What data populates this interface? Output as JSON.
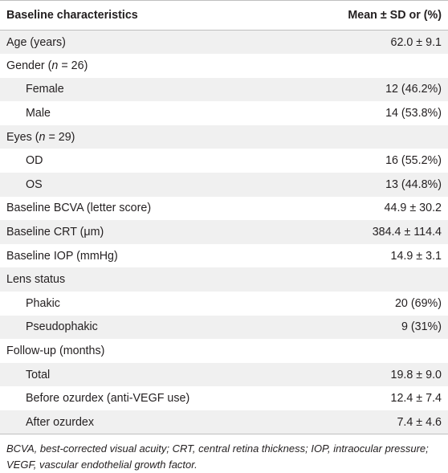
{
  "header": {
    "col1": "Baseline characteristics",
    "col2": "Mean ± SD or (%)"
  },
  "rows": [
    {
      "label": "Age (years)",
      "value": "62.0 ± 9.1",
      "indent": false,
      "shaded": true
    },
    {
      "label": "Gender (n = 26)",
      "value": "",
      "indent": false,
      "shaded": false
    },
    {
      "label": "Female",
      "value": "12 (46.2%)",
      "indent": true,
      "shaded": true
    },
    {
      "label": "Male",
      "value": "14 (53.8%)",
      "indent": true,
      "shaded": false
    },
    {
      "label": "Eyes (n = 29)",
      "value": "",
      "indent": false,
      "shaded": true
    },
    {
      "label": "OD",
      "value": "16 (55.2%)",
      "indent": true,
      "shaded": false
    },
    {
      "label": "OS",
      "value": "13 (44.8%)",
      "indent": true,
      "shaded": true
    },
    {
      "label": "Baseline BCVA (letter score)",
      "value": "44.9 ± 30.2",
      "indent": false,
      "shaded": false
    },
    {
      "label": "Baseline CRT (μm)",
      "value": "384.4 ± 114.4",
      "indent": false,
      "shaded": true
    },
    {
      "label": "Baseline IOP (mmHg)",
      "value": "14.9 ± 3.1",
      "indent": false,
      "shaded": false
    },
    {
      "label": "Lens status",
      "value": "",
      "indent": false,
      "shaded": true
    },
    {
      "label": "Phakic",
      "value": "20 (69%)",
      "indent": true,
      "shaded": false
    },
    {
      "label": "Pseudophakic",
      "value": "9 (31%)",
      "indent": true,
      "shaded": true
    },
    {
      "label": "Follow-up (months)",
      "value": "",
      "indent": false,
      "shaded": false
    },
    {
      "label": "Total",
      "value": "19.8 ± 9.0",
      "indent": true,
      "shaded": true
    },
    {
      "label": "Before ozurdex (anti-VEGF use)",
      "value": "12.4 ± 7.4",
      "indent": true,
      "shaded": false
    },
    {
      "label": "After ozurdex",
      "value": "7.4 ± 4.6",
      "indent": true,
      "shaded": true
    }
  ],
  "footnote": "BCVA, best-corrected visual acuity; CRT, central retina thickness; IOP, intraocular pressure; VEGF, vascular endothelial growth factor."
}
